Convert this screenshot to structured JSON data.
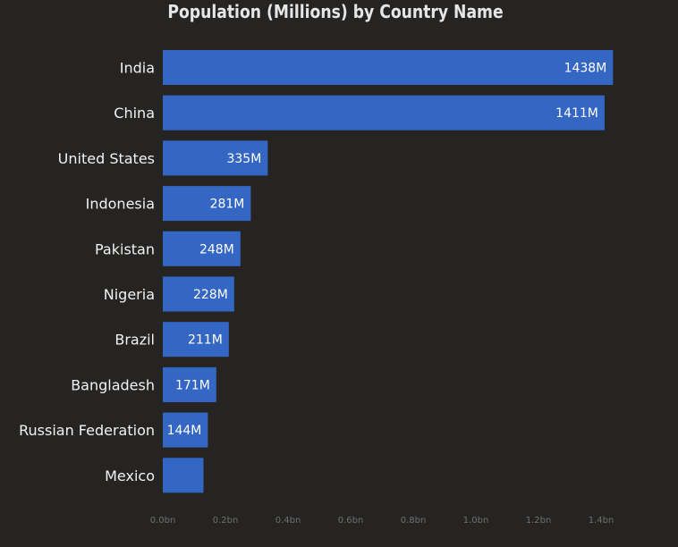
{
  "chart_data": {
    "type": "bar",
    "orientation": "horizontal",
    "title": "Population (Millions) by Country Name",
    "xlabel": "",
    "ylabel": "",
    "categories": [
      "India",
      "China",
      "United States",
      "Indonesia",
      "Pakistan",
      "Nigeria",
      "Brazil",
      "Bangladesh",
      "Russian Federation",
      "Mexico"
    ],
    "values": [
      1438,
      1411,
      335,
      281,
      248,
      228,
      211,
      171,
      144,
      130
    ],
    "data_labels": [
      "1438M",
      "1411M",
      "335M",
      "281M",
      "248M",
      "228M",
      "211M",
      "171M",
      "144M",
      ""
    ],
    "unit": "millions",
    "xlim": [
      0,
      1.4
    ],
    "x_ticks": [
      0,
      0.2,
      0.4,
      0.6,
      0.8,
      1.0,
      1.2,
      1.4
    ],
    "x_tick_labels": [
      "0.0bn",
      "0.2bn",
      "0.4bn",
      "0.6bn",
      "0.8bn",
      "1.0bn",
      "1.2bn",
      "1.4bn"
    ],
    "grid": false,
    "legend": "none",
    "colors": {
      "bar": "#3467c4",
      "background": "#252423",
      "title": "#e6e6e6",
      "category_label": "#f2f2f2",
      "value_label": "#ffffff",
      "tick_label": "#6f6f6f"
    }
  }
}
